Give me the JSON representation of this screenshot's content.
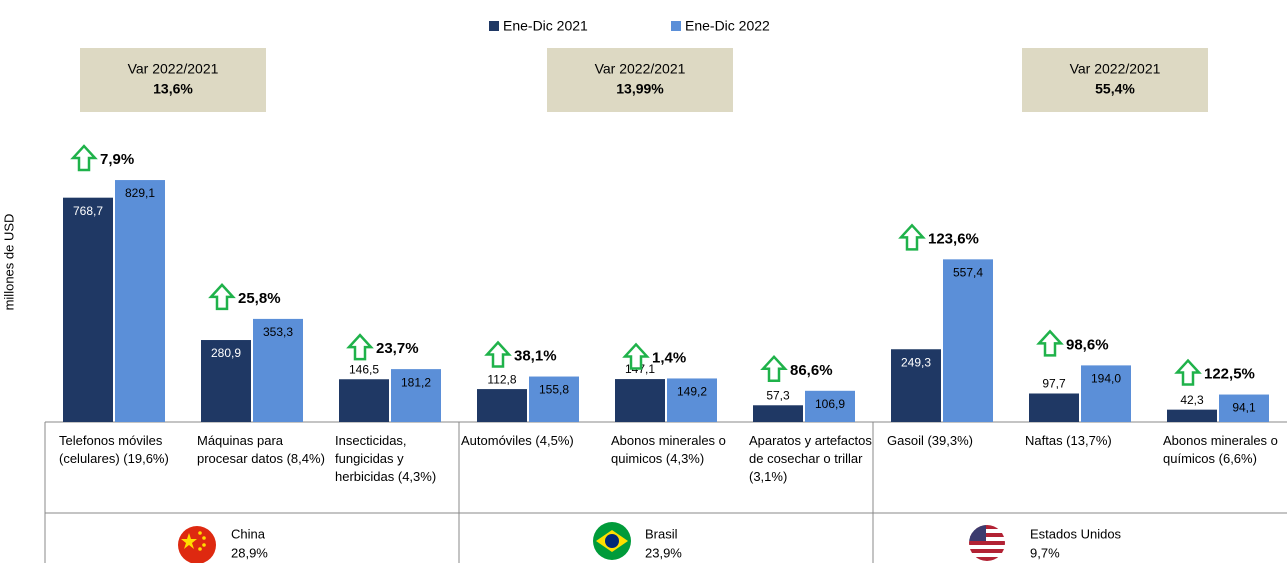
{
  "chart_data": {
    "type": "bar",
    "y_label": "millones de USD",
    "categories": [
      "Telefonos móviles (celulares) (19,6%)",
      "Máquinas para procesar datos (8,4%)",
      "Insecticidas, fungicidas y herbicidas (4,3%)",
      "Automóviles (4,5%)",
      "Abonos minerales o quimicos (4,3%)",
      "Aparatos y artefactos de cosechar o trillar (3,1%)",
      "Gasoil (39,3%)",
      "Naftas (13,7%)",
      "Abonos minerales o químicos (6,6%)"
    ],
    "series": [
      {
        "name": "Ene-Dic 2021",
        "color": "#1f3864",
        "values": [
          768.7,
          280.9,
          146.5,
          112.8,
          147.1,
          57.3,
          249.3,
          97.7,
          42.3
        ],
        "value_labels": [
          "768,7",
          "280,9",
          "146,5",
          "112,8",
          "147,1",
          "57,3",
          "249,3",
          "97,7",
          "42,3"
        ]
      },
      {
        "name": "Ene-Dic 2022",
        "color": "#5b8fd8",
        "values": [
          829.1,
          353.3,
          181.2,
          155.8,
          149.2,
          106.9,
          557.4,
          194.0,
          94.1
        ],
        "value_labels": [
          "829,1",
          "353,3",
          "181,2",
          "155,8",
          "149,2",
          "106,9",
          "557,4",
          "194,0",
          "94,1"
        ]
      }
    ],
    "growth_labels": [
      "7,9%",
      "25,8%",
      "23,7%",
      "38,1%",
      "1,4%",
      "86,6%",
      "123,6%",
      "98,6%",
      "122,5%"
    ],
    "groups": [
      {
        "name": "China",
        "share": "28,9%",
        "var_title": "Var 2022/2021",
        "var_value": "13,6%"
      },
      {
        "name": "Brasil",
        "share": "23,9%",
        "var_title": "Var 2022/2021",
        "var_value": "13,99%"
      },
      {
        "name": "Estados Unidos",
        "share": "9,7%",
        "var_title": "Var 2022/2021",
        "var_value": "55,4%"
      }
    ],
    "ylim": [
      0,
      1100
    ]
  }
}
